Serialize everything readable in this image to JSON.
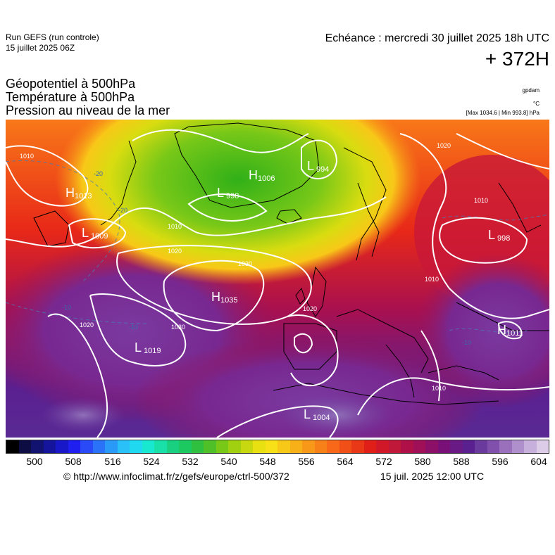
{
  "header": {
    "run_title": "Run GEFS (run controle)",
    "run_date": "15 juillet 2025 06Z",
    "echeance": "Echéance : mercredi 30 juillet 2025 18h UTC",
    "lead_time": "+ 372H"
  },
  "parameters": {
    "geopotential": "Géopotentiel à 500hPa",
    "temperature": "Température à 500hPa",
    "pressure": "Pression au niveau de la mer"
  },
  "units": {
    "geopotential": "gpdam",
    "temperature": "°C",
    "pressure": "[Max 1034.6 | Min 993.8] hPa"
  },
  "map": {
    "pressure_centers": [
      {
        "type": "H",
        "value": "1013"
      },
      {
        "type": "L",
        "value": "1009"
      },
      {
        "type": "H",
        "value": "1006"
      },
      {
        "type": "L",
        "value": "998"
      },
      {
        "type": "L",
        "value": "994"
      },
      {
        "type": "L",
        "value": "998"
      },
      {
        "type": "H",
        "value": "1035"
      },
      {
        "type": "L",
        "value": "1019"
      },
      {
        "type": "H",
        "value": "1011"
      },
      {
        "type": "L",
        "value": "1004"
      }
    ],
    "isobar_labels": [
      "1010",
      "1010",
      "1020",
      "1030",
      "1030",
      "1020",
      "1020",
      "1010",
      "1010",
      "1010",
      "1020"
    ],
    "isotherm_labels": [
      "-20",
      "-20",
      "-10",
      "-10",
      "-10"
    ]
  },
  "colorbar": {
    "ticks": [
      "500",
      "508",
      "516",
      "524",
      "532",
      "540",
      "548",
      "556",
      "564",
      "572",
      "580",
      "588",
      "596",
      "604"
    ],
    "colors": [
      "#000000",
      "#0d0d44",
      "#121270",
      "#14149c",
      "#1818c8",
      "#1f1ff0",
      "#2a4af8",
      "#2a72f8",
      "#2a9af8",
      "#2ac0f8",
      "#20d8f0",
      "#18e8d0",
      "#18e0a8",
      "#18d080",
      "#1cc860",
      "#30c040",
      "#50c028",
      "#78c818",
      "#a0d010",
      "#c8d810",
      "#e8e010",
      "#f8e018",
      "#f8c818",
      "#f8b018",
      "#f89818",
      "#f88018",
      "#f86818",
      "#f05018",
      "#e83818",
      "#e02018",
      "#d01828",
      "#c01838",
      "#b01048",
      "#a01058",
      "#8c1068",
      "#781078",
      "#6a1a84",
      "#5a2090",
      "#6a3a9c",
      "#8050ac",
      "#9a70bc",
      "#b090cc",
      "#c8b0dc",
      "#dccce8"
    ]
  },
  "footer": {
    "source": "© http://www.infoclimat.fr/z/gefs/europe/ctrl-500/372",
    "timestamp": "15 juil. 2025 12:00 UTC"
  }
}
